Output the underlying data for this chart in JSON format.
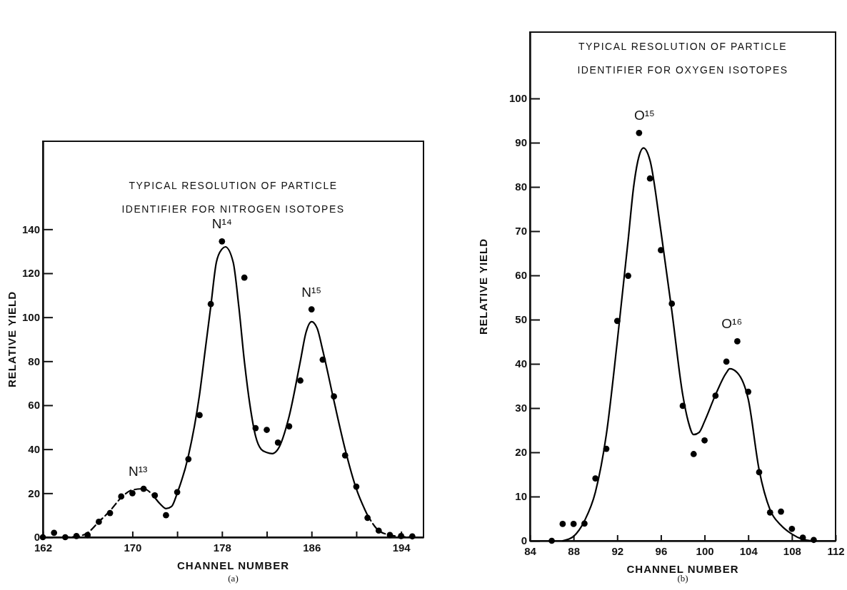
{
  "chart_data": [
    {
      "type": "scatter",
      "title": "TYPICAL RESOLUTION OF PARTICLE\nIDENTIFIER FOR NITROGEN ISOTOPES",
      "xlabel": "CHANNEL NUMBER",
      "ylabel": "RELATIVE YIELD",
      "xlim": [
        162,
        196
      ],
      "ylim": [
        0,
        180
      ],
      "xticks": [
        162,
        170,
        {
          "value": 174,
          "label": null
        },
        178,
        {
          "value": 182,
          "label": null
        },
        186,
        {
          "value": 190,
          "label": null
        },
        194
      ],
      "yticks": [
        0,
        20,
        40,
        60,
        80,
        100,
        120,
        140
      ],
      "grid": false,
      "series": [
        {
          "marker": "circle",
          "color": "#000000",
          "x": [
            162,
            163,
            164,
            165,
            166,
            167,
            168,
            169,
            170,
            171,
            172,
            173,
            174,
            175,
            176,
            177,
            178,
            180,
            181,
            182,
            183,
            184,
            185,
            186,
            187,
            188,
            189,
            190,
            191,
            192,
            193,
            194,
            195
          ],
          "values": [
            0,
            2,
            0,
            0.5,
            1,
            7,
            11,
            18.5,
            20,
            22,
            19,
            10,
            20.5,
            35.5,
            55.5,
            106,
            134.5,
            118,
            49.6,
            48.8,
            43,
            50.4,
            71.2,
            103.6,
            80.7,
            64,
            37.2,
            23,
            8.8,
            3,
            1,
            0.5,
            0.4
          ]
        },
        {
          "type": "line",
          "marker": "none",
          "line_style": "dashed",
          "color": "#000000",
          "x": [
            162,
            164,
            165,
            166,
            167,
            168,
            169,
            170,
            171,
            172
          ],
          "values": [
            0,
            0,
            0.3,
            2,
            7,
            12,
            18,
            21.5,
            22,
            18
          ]
        },
        {
          "type": "line",
          "marker": "none",
          "line_style": "solid",
          "color": "#000000",
          "x": [
            172,
            172.5,
            173,
            173.5,
            174,
            175,
            176,
            176.5,
            177,
            177.5,
            178,
            178.3,
            179,
            179.5,
            180,
            180.5,
            181,
            181.5,
            182,
            182.5,
            183,
            184,
            185,
            185.5,
            186,
            186.5,
            187,
            188,
            189,
            190,
            191
          ],
          "values": [
            18,
            15,
            13,
            14,
            20,
            37,
            65,
            85,
            105,
            125,
            131,
            132,
            125,
            105,
            80,
            60,
            46,
            40,
            38.5,
            38,
            40,
            55,
            80,
            93,
            98,
            95,
            85,
            62,
            40,
            22,
            10
          ]
        },
        {
          "type": "line",
          "marker": "none",
          "line_style": "dashed",
          "color": "#000000",
          "x": [
            191,
            192,
            193,
            194,
            195
          ],
          "values": [
            10,
            3,
            1,
            0.3,
            0
          ]
        }
      ],
      "annotations": [
        {
          "text": "N¹³",
          "x": 170.5,
          "y": 22
        },
        {
          "text": "N¹⁴",
          "x": 178,
          "y": 134.5
        },
        {
          "text": "N¹⁵",
          "x": 186,
          "y": 103.6
        },
        "(a)"
      ]
    },
    {
      "type": "scatter",
      "title": "TYPICAL RESOLUTION OF PARTICLE\nIDENTIFIER FOR OXYGEN ISOTOPES",
      "xlabel": "CHANNEL NUMBER",
      "ylabel": "RELATIVE YIELD",
      "xlim": [
        84,
        112
      ],
      "ylim": [
        0,
        115
      ],
      "xticks": [
        84,
        88,
        92,
        96,
        100,
        104,
        108,
        112
      ],
      "yticks": [
        0,
        10,
        20,
        30,
        40,
        50,
        60,
        70,
        80,
        90,
        100
      ],
      "grid": false,
      "series": [
        {
          "marker": "circle",
          "color": "#000000",
          "x": [
            86,
            87,
            88,
            89,
            90,
            91,
            92,
            93,
            94,
            95,
            96,
            97,
            98,
            99,
            100,
            101,
            102,
            103,
            104,
            105,
            106,
            107,
            108,
            109,
            110
          ],
          "values": [
            0,
            3.8,
            3.8,
            3.9,
            14.1,
            20.8,
            49.7,
            59.9,
            92.2,
            81.9,
            65.7,
            53.6,
            30.5,
            19.6,
            22.7,
            32.8,
            40.5,
            45.1,
            33.7,
            15.5,
            6.4,
            6.6,
            2.7,
            0.7,
            0.2
          ]
        },
        {
          "type": "line",
          "marker": "none",
          "line_style": "solid",
          "color": "#000000",
          "x": [
            87,
            88,
            89,
            90,
            91,
            92,
            93,
            93.5,
            94,
            94.4,
            95,
            96,
            97,
            98,
            98.5,
            99,
            99.5,
            100,
            101,
            102,
            102.3,
            103,
            104,
            105,
            106,
            107,
            108,
            109,
            109.8
          ],
          "values": [
            0,
            1,
            4.5,
            11,
            24,
            45,
            68,
            80,
            87,
            88.8,
            86,
            70,
            52,
            33,
            27,
            24,
            24.5,
            27,
            33,
            38,
            38.9,
            38,
            32,
            16,
            7,
            3.5,
            1.5,
            0.3,
            0
          ]
        }
      ],
      "annotations": [
        {
          "text": "O¹⁵",
          "x": 94.5,
          "y": 92.2
        },
        {
          "text": "O¹⁶",
          "x": 102.5,
          "y": 45.1
        },
        "(b)"
      ]
    }
  ]
}
